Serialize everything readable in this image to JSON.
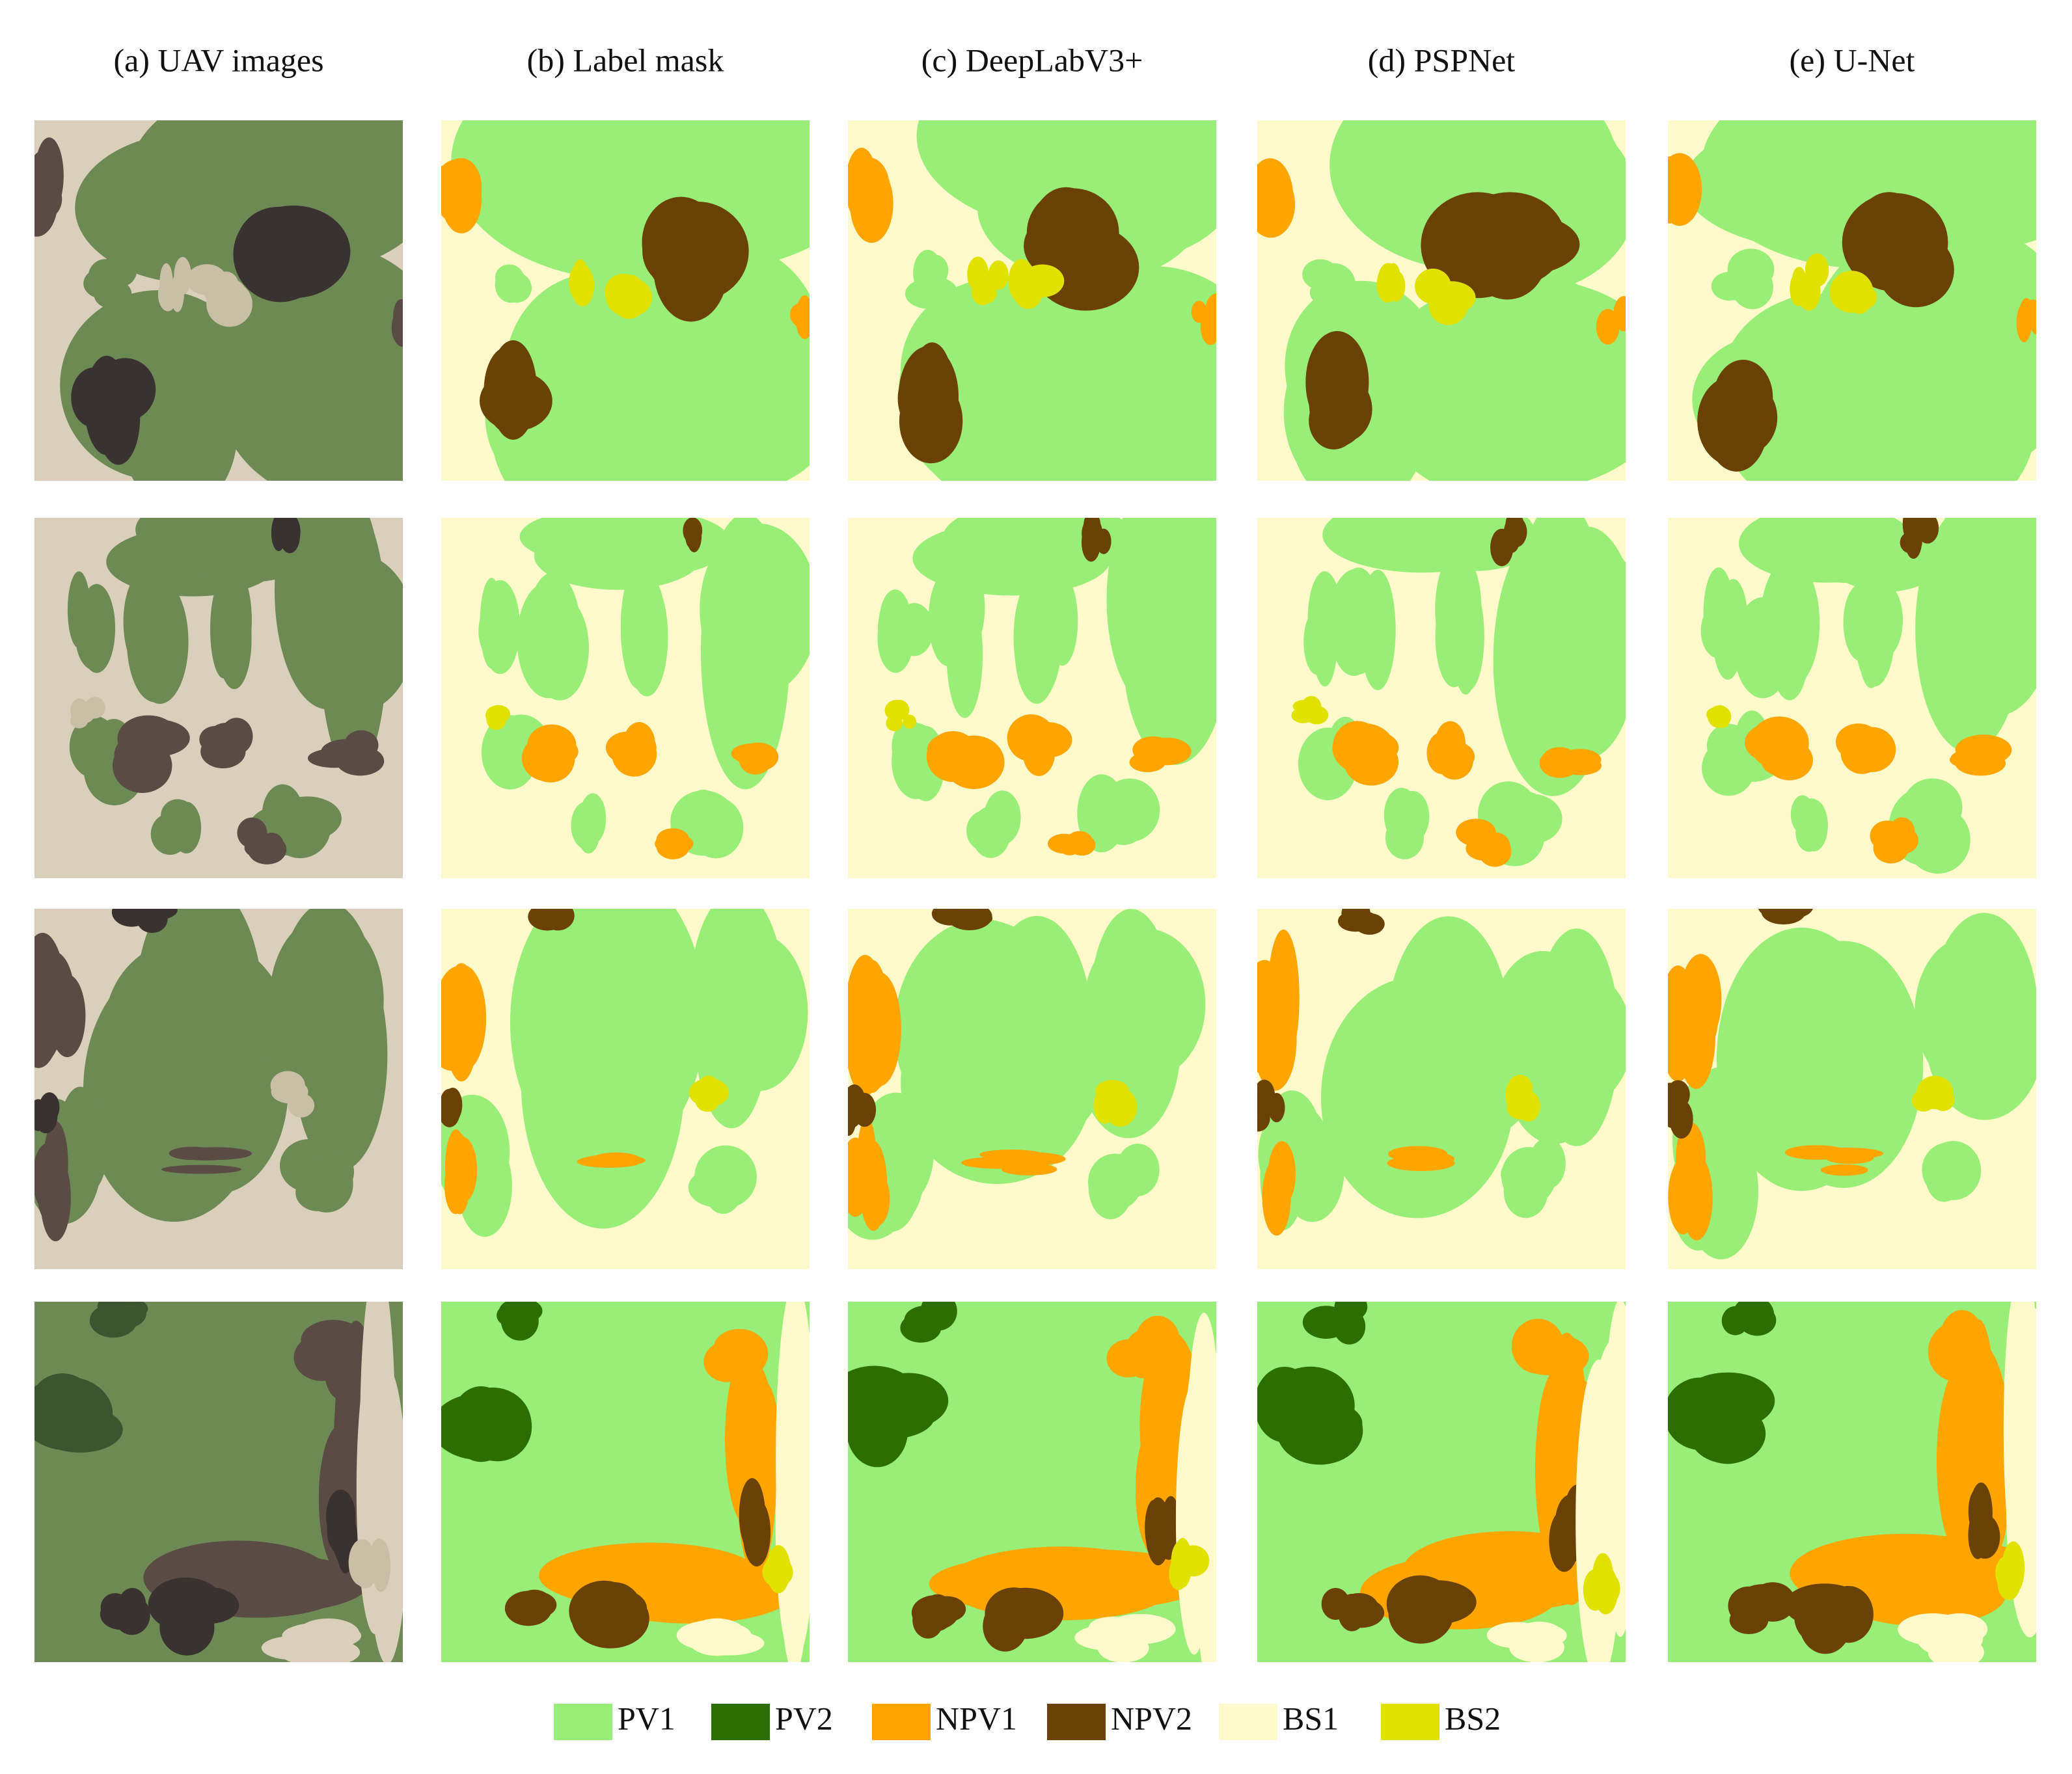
{
  "columns": [
    "(a) UAV images",
    "(b) Label mask",
    "(c) DeepLabV3+",
    "(d) PSPNet",
    "(e) U-Net"
  ],
  "legend": {
    "items": [
      {
        "label": "PV1",
        "color": "#99ee77"
      },
      {
        "label": "PV2",
        "color": "#2d6e00"
      },
      {
        "label": "NPV1",
        "color": "#ffa500"
      },
      {
        "label": "NPV2",
        "color": "#6b4205"
      },
      {
        "label": "BS1",
        "color": "#fffacc"
      },
      {
        "label": "BS2",
        "color": "#e2e200"
      }
    ]
  }
}
